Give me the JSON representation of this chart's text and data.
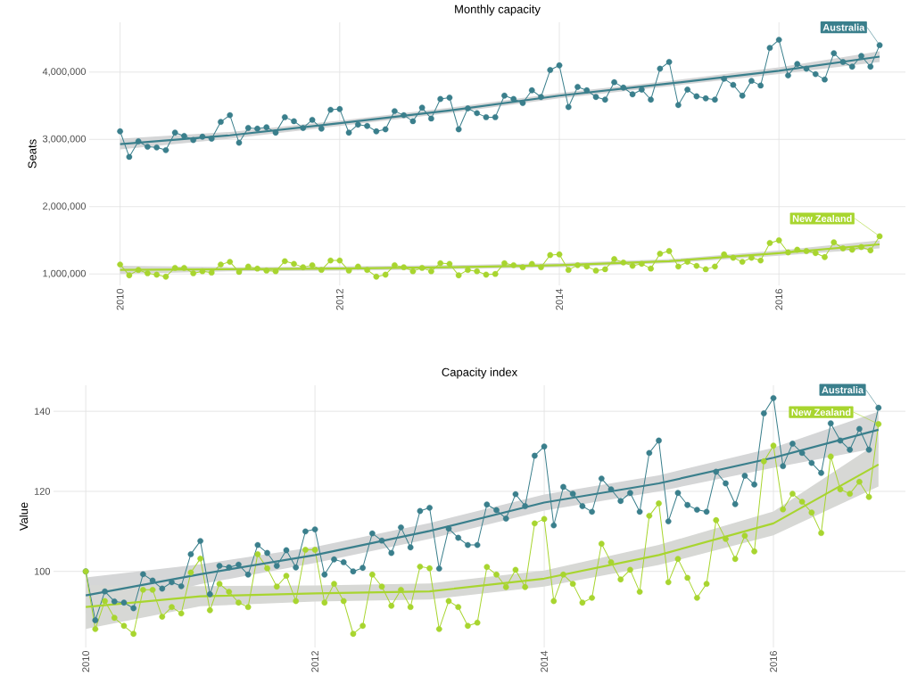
{
  "chart_data": [
    {
      "type": "line",
      "title": "Monthly capacity",
      "ylabel": "Seats",
      "grid": true,
      "legend": "top right",
      "xlim": [
        "2009-09-20",
        "2017-02-26"
      ],
      "xticks": [
        "2010",
        "2012",
        "2014",
        "2016"
      ],
      "ylim": [
        830000,
        4740000
      ],
      "yticks": [
        {
          "value": 1000000,
          "label": "1,000,000"
        },
        {
          "value": 2000000,
          "label": "2,000,000"
        },
        {
          "value": 3000000,
          "label": "3,000,000"
        },
        {
          "value": 4000000,
          "label": "4,000,000"
        }
      ],
      "x": [
        "2010-01",
        "2010-02",
        "2010-03",
        "2010-04",
        "2010-05",
        "2010-06",
        "2010-07",
        "2010-08",
        "2010-09",
        "2010-10",
        "2010-11",
        "2010-12",
        "2011-01",
        "2011-02",
        "2011-03",
        "2011-04",
        "2011-05",
        "2011-06",
        "2011-07",
        "2011-08",
        "2011-09",
        "2011-10",
        "2011-11",
        "2011-12",
        "2012-01",
        "2012-02",
        "2012-03",
        "2012-04",
        "2012-05",
        "2012-06",
        "2012-07",
        "2012-08",
        "2012-09",
        "2012-10",
        "2012-11",
        "2012-12",
        "2013-01",
        "2013-02",
        "2013-03",
        "2013-04",
        "2013-05",
        "2013-06",
        "2013-07",
        "2013-08",
        "2013-09",
        "2013-10",
        "2013-11",
        "2013-12",
        "2014-01",
        "2014-02",
        "2014-03",
        "2014-04",
        "2014-05",
        "2014-06",
        "2014-07",
        "2014-08",
        "2014-09",
        "2014-10",
        "2014-11",
        "2014-12",
        "2015-01",
        "2015-02",
        "2015-03",
        "2015-04",
        "2015-05",
        "2015-06",
        "2015-07",
        "2015-08",
        "2015-09",
        "2015-10",
        "2015-11",
        "2015-12",
        "2016-01",
        "2016-02",
        "2016-03",
        "2016-04",
        "2016-05",
        "2016-06",
        "2016-07",
        "2016-08",
        "2016-09",
        "2016-10",
        "2016-11",
        "2016-12"
      ],
      "series": [
        {
          "name": "Australia",
          "color": "#3a7f8c",
          "marker": "circle",
          "values": [
            3120000,
            2740000,
            2970000,
            2890000,
            2880000,
            2840000,
            3100000,
            3050000,
            2990000,
            3040000,
            3010000,
            3260000,
            3360000,
            2950000,
            3170000,
            3160000,
            3180000,
            3100000,
            3330000,
            3270000,
            3170000,
            3290000,
            3160000,
            3440000,
            3450000,
            3100000,
            3220000,
            3200000,
            3120000,
            3150000,
            3420000,
            3360000,
            3270000,
            3470000,
            3310000,
            3600000,
            3620000,
            3150000,
            3460000,
            3390000,
            3330000,
            3330000,
            3650000,
            3600000,
            3540000,
            3730000,
            3630000,
            4030000,
            4100000,
            3480000,
            3780000,
            3730000,
            3630000,
            3590000,
            3850000,
            3770000,
            3670000,
            3740000,
            3590000,
            4050000,
            4150000,
            3510000,
            3740000,
            3640000,
            3610000,
            3590000,
            3900000,
            3810000,
            3650000,
            3870000,
            3800000,
            4360000,
            4480000,
            3950000,
            4120000,
            4050000,
            3970000,
            3890000,
            4280000,
            4150000,
            4080000,
            4240000,
            4080000,
            4400000
          ]
        },
        {
          "name": "New Zealand",
          "color": "#a8d52f",
          "marker": "circle",
          "values": [
            1140000,
            980000,
            1060000,
            1010000,
            990000,
            960000,
            1090000,
            1090000,
            1010000,
            1040000,
            1020000,
            1140000,
            1180000,
            1030000,
            1110000,
            1080000,
            1050000,
            1040000,
            1190000,
            1150000,
            1100000,
            1130000,
            1060000,
            1200000,
            1200000,
            1050000,
            1110000,
            1060000,
            960000,
            990000,
            1130000,
            1100000,
            1040000,
            1090000,
            1040000,
            1160000,
            1150000,
            980000,
            1060000,
            1040000,
            990000,
            1000000,
            1160000,
            1130000,
            1100000,
            1150000,
            1100000,
            1280000,
            1290000,
            1060000,
            1130000,
            1110000,
            1050000,
            1070000,
            1220000,
            1170000,
            1120000,
            1150000,
            1080000,
            1300000,
            1340000,
            1110000,
            1180000,
            1120000,
            1070000,
            1110000,
            1290000,
            1240000,
            1180000,
            1240000,
            1200000,
            1460000,
            1500000,
            1320000,
            1360000,
            1340000,
            1310000,
            1250000,
            1470000,
            1380000,
            1360000,
            1400000,
            1350000,
            1560000
          ]
        },
        {
          "type": "line",
          "color": "#3a7f8c",
          "marker": "none",
          "x": [
            "2010-01",
            "2011-01",
            "2012-01",
            "2013-01",
            "2014-01",
            "2015-01",
            "2016-01",
            "2016-12"
          ],
          "values": [
            2930000,
            3060000,
            3240000,
            3430000,
            3650000,
            3830000,
            4020000,
            4230000
          ],
          "lower": [
            2850000,
            3010000,
            3200000,
            3390000,
            3610000,
            3790000,
            3970000,
            4150000
          ],
          "upper": [
            3010000,
            3110000,
            3280000,
            3470000,
            3690000,
            3870000,
            4070000,
            4310000
          ]
        },
        {
          "type": "line",
          "color": "#a8d52f",
          "marker": "none",
          "x": [
            "2010-01",
            "2011-01",
            "2012-01",
            "2013-01",
            "2014-01",
            "2015-01",
            "2016-01",
            "2016-12"
          ],
          "values": [
            1060000,
            1070000,
            1080000,
            1100000,
            1130000,
            1190000,
            1310000,
            1440000
          ],
          "lower": [
            1000000,
            1040000,
            1050000,
            1070000,
            1100000,
            1160000,
            1270000,
            1380000
          ],
          "upper": [
            1120000,
            1100000,
            1110000,
            1130000,
            1160000,
            1220000,
            1350000,
            1500000
          ]
        }
      ]
    },
    {
      "type": "line",
      "title": "Capacity index",
      "ylabel": "Value",
      "grid": true,
      "legend": "top right",
      "xlim": [
        "2009-09-20",
        "2017-02-26"
      ],
      "xticks": [
        "2010",
        "2012",
        "2014",
        "2016"
      ],
      "ylim": [
        81,
        146.5
      ],
      "yticks": [
        100,
        120,
        140
      ],
      "x": [
        "2010-01",
        "2010-02",
        "2010-03",
        "2010-04",
        "2010-05",
        "2010-06",
        "2010-07",
        "2010-08",
        "2010-09",
        "2010-10",
        "2010-11",
        "2010-12",
        "2011-01",
        "2011-02",
        "2011-03",
        "2011-04",
        "2011-05",
        "2011-06",
        "2011-07",
        "2011-08",
        "2011-09",
        "2011-10",
        "2011-11",
        "2011-12",
        "2012-01",
        "2012-02",
        "2012-03",
        "2012-04",
        "2012-05",
        "2012-06",
        "2012-07",
        "2012-08",
        "2012-09",
        "2012-10",
        "2012-11",
        "2012-12",
        "2013-01",
        "2013-02",
        "2013-03",
        "2013-04",
        "2013-05",
        "2013-06",
        "2013-07",
        "2013-08",
        "2013-09",
        "2013-10",
        "2013-11",
        "2013-12",
        "2014-01",
        "2014-02",
        "2014-03",
        "2014-04",
        "2014-05",
        "2014-06",
        "2014-07",
        "2014-08",
        "2014-09",
        "2014-10",
        "2014-11",
        "2014-12",
        "2015-01",
        "2015-02",
        "2015-03",
        "2015-04",
        "2015-05",
        "2015-06",
        "2015-07",
        "2015-08",
        "2015-09",
        "2015-10",
        "2015-11",
        "2015-12",
        "2016-01",
        "2016-02",
        "2016-03",
        "2016-04",
        "2016-05",
        "2016-06",
        "2016-07",
        "2016-08",
        "2016-09",
        "2016-10",
        "2016-11",
        "2016-12"
      ],
      "series": [
        {
          "name": "Australia",
          "color": "#3a7f8c",
          "marker": "circle",
          "values": [
            100.0,
            87.8,
            95.0,
            92.5,
            92.2,
            90.8,
            99.3,
            97.7,
            95.7,
            97.3,
            96.3,
            104.3,
            107.6,
            94.3,
            101.4,
            101.0,
            101.7,
            99.2,
            106.6,
            104.6,
            101.4,
            105.3,
            101.0,
            110.0,
            110.5,
            99.2,
            103.0,
            102.3,
            100.0,
            100.9,
            109.5,
            107.7,
            104.6,
            111.0,
            106.0,
            115.1,
            115.9,
            100.7,
            110.7,
            108.4,
            106.6,
            106.6,
            116.7,
            115.3,
            113.2,
            119.3,
            116.3,
            128.9,
            131.2,
            111.5,
            121.1,
            119.4,
            116.3,
            114.9,
            123.2,
            120.5,
            117.6,
            119.6,
            114.9,
            129.6,
            132.7,
            112.5,
            119.6,
            116.6,
            115.4,
            114.9,
            124.9,
            122.0,
            116.8,
            123.9,
            121.7,
            139.5,
            143.3,
            126.3,
            131.9,
            129.6,
            127.1,
            124.6,
            137.0,
            132.7,
            130.4,
            135.6,
            130.4,
            140.9
          ]
        },
        {
          "name": "New Zealand",
          "color": "#a8d52f",
          "marker": "circle",
          "values": [
            100.0,
            85.6,
            92.6,
            88.4,
            86.4,
            84.4,
            95.4,
            95.4,
            88.7,
            91.1,
            89.5,
            99.7,
            103.2,
            90.3,
            96.9,
            94.9,
            92.2,
            91.1,
            104.3,
            100.8,
            96.2,
            98.9,
            92.6,
            105.4,
            105.4,
            92.2,
            96.9,
            92.6,
            84.4,
            86.4,
            99.2,
            96.2,
            91.4,
            95.4,
            91.1,
            101.2,
            100.8,
            85.6,
            92.6,
            91.1,
            86.4,
            87.2,
            101.1,
            99.2,
            96.1,
            100.4,
            96.1,
            112.0,
            113.1,
            92.6,
            99.2,
            96.9,
            92.2,
            93.4,
            106.9,
            102.3,
            98.0,
            100.4,
            94.9,
            113.9,
            117.0,
            97.3,
            103.1,
            98.4,
            93.4,
            96.9,
            112.8,
            108.1,
            103.1,
            108.9,
            105.0,
            127.5,
            131.4,
            115.5,
            119.4,
            117.4,
            114.7,
            109.6,
            128.7,
            120.5,
            119.4,
            122.4,
            118.6,
            136.8
          ]
        },
        {
          "type": "line",
          "color": "#3a7f8c",
          "marker": "none",
          "x": [
            "2010-01",
            "2011-01",
            "2012-01",
            "2013-01",
            "2014-01",
            "2015-01",
            "2016-01",
            "2016-12"
          ],
          "values": [
            94.0,
            99.3,
            104.1,
            110.1,
            117.2,
            122.0,
            128.4,
            135.4
          ],
          "lower": [
            89.5,
            96.8,
            102.1,
            108.1,
            115.2,
            120.0,
            125.9,
            130.9
          ],
          "upper": [
            98.5,
            101.8,
            106.1,
            112.1,
            119.2,
            124.0,
            130.9,
            139.9
          ]
        },
        {
          "type": "line",
          "color": "#a8d52f",
          "marker": "none",
          "x": [
            "2010-01",
            "2011-01",
            "2012-01",
            "2013-01",
            "2014-01",
            "2015-01",
            "2016-01",
            "2016-12"
          ],
          "values": [
            91.1,
            93.8,
            94.5,
            95.0,
            98.2,
            104.1,
            112.0,
            126.7
          ],
          "lower": [
            85.6,
            91.3,
            92.5,
            93.0,
            96.2,
            101.6,
            109.0,
            121.2
          ],
          "upper": [
            96.6,
            96.3,
            96.5,
            97.0,
            100.2,
            106.6,
            115.0,
            132.2
          ]
        }
      ]
    }
  ]
}
